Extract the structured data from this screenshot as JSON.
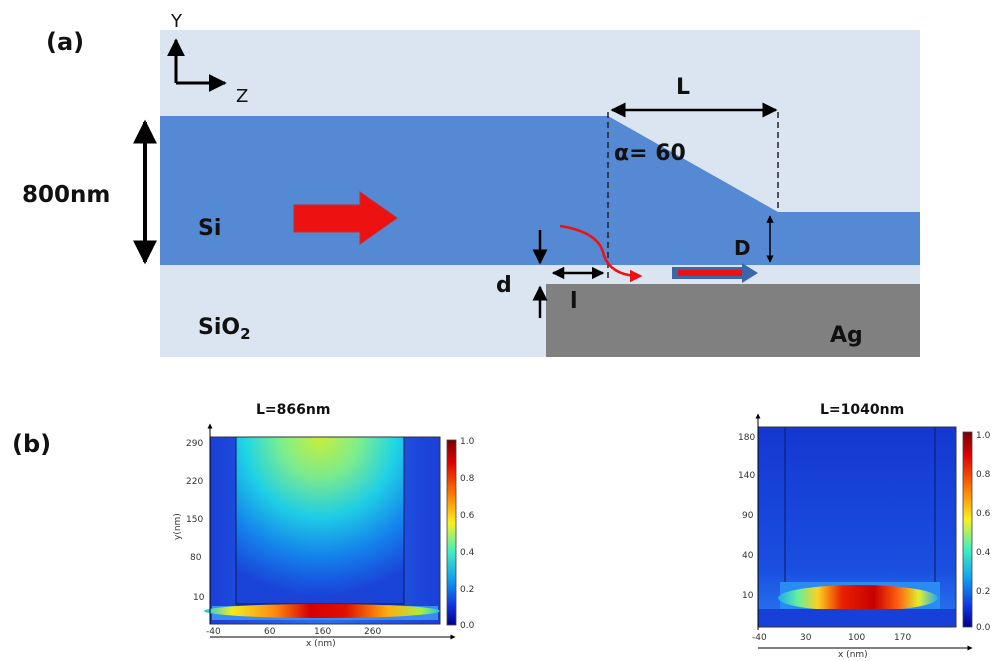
{
  "panel_a": {
    "label": "(a)",
    "axis_y": "Y",
    "axis_z": "Z",
    "thickness": "800nm",
    "si": "Si",
    "sio2_main": "SiO",
    "sio2_sub": "2",
    "ag": "Ag",
    "L": "L",
    "alpha": "α= 60",
    "D": "D",
    "d": "d",
    "l": "l"
  },
  "panel_b": {
    "label": "(b)",
    "maps": [
      {
        "title": "L=866nm",
        "ylabel": "y(nm)",
        "xlabel": "x (nm)",
        "yticks": [
          "290",
          "220",
          "150",
          "80",
          "10"
        ],
        "xticks": [
          "-40",
          "60",
          "160",
          "260"
        ],
        "cbar_ticks": [
          "1.0",
          "0.8",
          "0.6",
          "0.4",
          "0.2",
          "0.0"
        ]
      },
      {
        "title": "L=1040nm",
        "ylabel": "",
        "xlabel": "x (nm)",
        "yticks": [
          "180",
          "140",
          "90",
          "40",
          "10"
        ],
        "xticks": [
          "-40",
          "30",
          "100",
          "170"
        ],
        "cbar_ticks": [
          "1.0",
          "0.8",
          "0.6",
          "0.4",
          "0.2",
          "0.0"
        ]
      }
    ]
  },
  "colors": {
    "cladding": "#dbe5f1",
    "silicon": "#5589d3",
    "silver": "#808080",
    "arrow_red": "#ee1111",
    "arrow_blue": "#3d66a8"
  }
}
